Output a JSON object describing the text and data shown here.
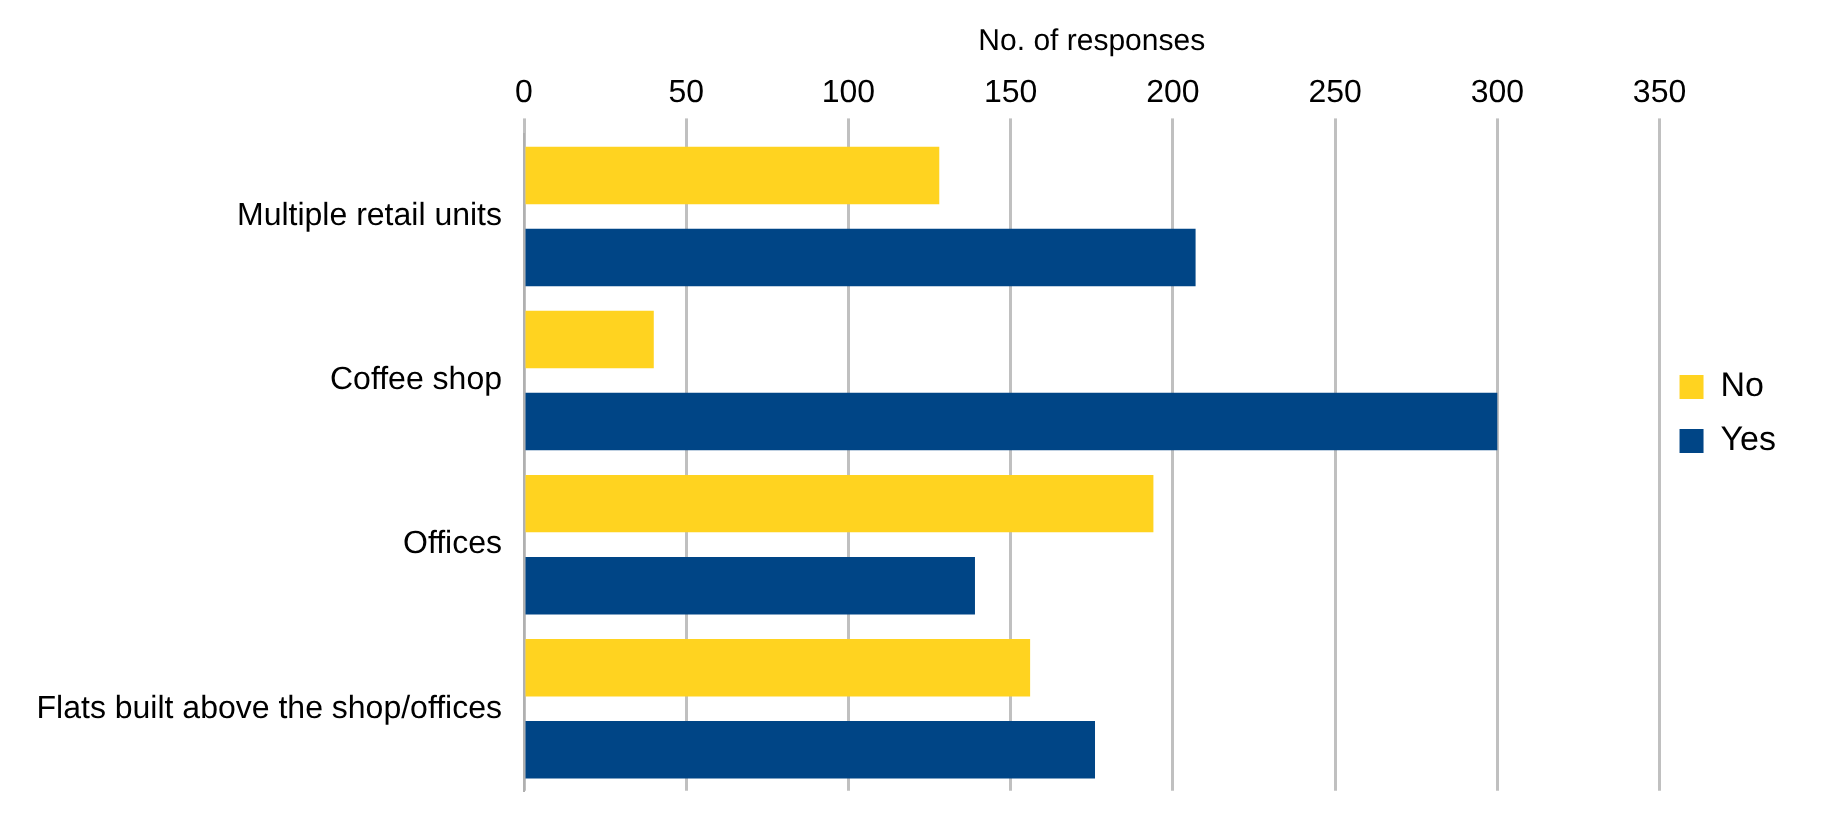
{
  "chart_data": {
    "type": "bar",
    "orientation": "horizontal",
    "xlabel": "No. of responses",
    "categories": [
      "Multiple retail units",
      "Coffee shop",
      "Offices",
      "Flats built above the shop/offices"
    ],
    "series": [
      {
        "name": "No",
        "color": "#ffd320",
        "values": [
          128,
          40,
          194,
          156
        ]
      },
      {
        "name": "Yes",
        "color": "#004586",
        "values": [
          207,
          300,
          139,
          176
        ]
      }
    ],
    "xlim": [
      0,
      350
    ],
    "xticks": [
      0,
      50,
      100,
      150,
      200,
      250,
      300,
      350
    ],
    "grid": "x",
    "legend": "right"
  }
}
